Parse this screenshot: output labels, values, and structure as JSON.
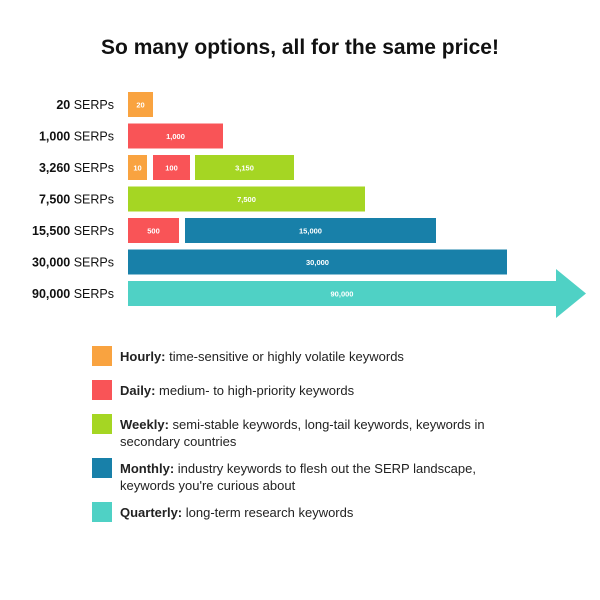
{
  "chart_data": {
    "type": "bar",
    "title": "So many options, all for the same price!",
    "unit_label": "SERPs",
    "rows": [
      {
        "total": "20",
        "segments": [
          {
            "series": "Hourly",
            "value": 20,
            "label": "20"
          }
        ]
      },
      {
        "total": "1,000",
        "segments": [
          {
            "series": "Daily",
            "value": 1000,
            "label": "1,000"
          }
        ]
      },
      {
        "total": "3,260",
        "segments": [
          {
            "series": "Hourly",
            "value": 10,
            "label": "10"
          },
          {
            "series": "Daily",
            "value": 100,
            "label": "100"
          },
          {
            "series": "Weekly",
            "value": 3150,
            "label": "3,150"
          }
        ]
      },
      {
        "total": "7,500",
        "segments": [
          {
            "series": "Weekly",
            "value": 7500,
            "label": "7,500"
          }
        ]
      },
      {
        "total": "15,500",
        "segments": [
          {
            "series": "Daily",
            "value": 500,
            "label": "500"
          },
          {
            "series": "Monthly",
            "value": 15000,
            "label": "15,000"
          }
        ]
      },
      {
        "total": "30,000",
        "segments": [
          {
            "series": "Monthly",
            "value": 30000,
            "label": "30,000"
          }
        ]
      },
      {
        "total": "90,000",
        "segments": [
          {
            "series": "Quarterly",
            "value": 90000,
            "label": "90,000"
          }
        ]
      }
    ],
    "series": [
      {
        "name": "Hourly",
        "color": "#F9A340",
        "description": "time-sensitive or highly volatile keywords"
      },
      {
        "name": "Daily",
        "color": "#F95457",
        "description": "medium- to high-priority keywords"
      },
      {
        "name": "Weekly",
        "color": "#A5D623",
        "description": "semi-stable keywords, long-tail keywords, keywords in secondary countries"
      },
      {
        "name": "Monthly",
        "color": "#1880A9",
        "description": "industry keywords to flesh out the SERP landscape, keywords you're curious about"
      },
      {
        "name": "Quarterly",
        "color": "#4FD1C5",
        "description": "long-term research keywords"
      }
    ],
    "last_row_arrow": true,
    "grid": false,
    "legend_placement": "bottom"
  }
}
